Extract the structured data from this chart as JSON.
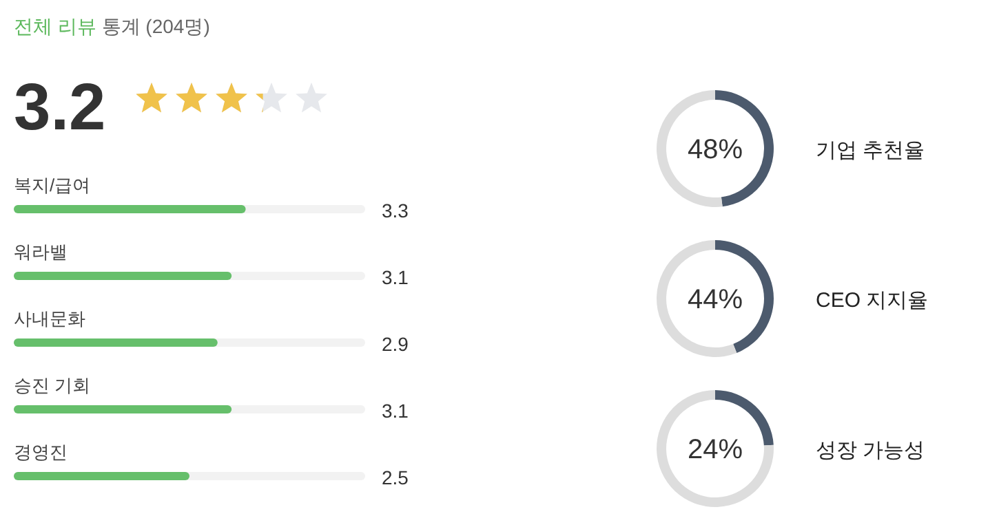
{
  "chart_data": [
    {
      "type": "bar",
      "orientation": "horizontal",
      "title": "전체 리뷰",
      "subtitle": "통계 (204명)",
      "annotations": [
        "3.2"
      ],
      "categories": [
        "복지/급여",
        "워라밸",
        "사내문화",
        "승진 기회",
        "경영진"
      ],
      "values": [
        3.3,
        3.1,
        2.9,
        3.1,
        2.5
      ],
      "color": "#66bf6b",
      "xlim": [
        0,
        5
      ],
      "data_labels": true
    },
    {
      "type": "donut",
      "title": "기업 추천율",
      "categories": [
        null,
        null
      ],
      "values": [
        48,
        52
      ],
      "colors": [
        "#4c5a6d",
        "#dddddd"
      ],
      "annotations": [
        "48%"
      ]
    },
    {
      "type": "donut",
      "title": "CEO 지지율",
      "categories": [
        null,
        null
      ],
      "values": [
        44,
        56
      ],
      "colors": [
        "#4c5a6d",
        "#dddddd"
      ],
      "annotations": [
        "44%"
      ]
    },
    {
      "type": "donut",
      "title": "성장 가능성",
      "categories": [
        null,
        null
      ],
      "values": [
        24,
        76
      ],
      "colors": [
        "#4c5a6d",
        "#dddddd"
      ],
      "annotations": [
        "24%"
      ]
    }
  ]
}
